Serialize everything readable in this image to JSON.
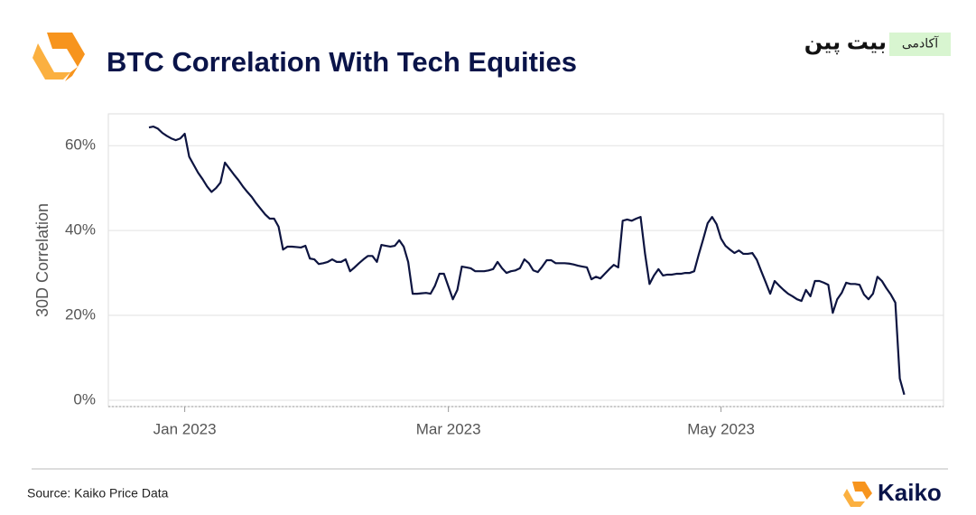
{
  "chart_data": {
    "type": "line",
    "title": "BTC Correlation With Tech Equities",
    "ylabel": "30D Correlation",
    "source": "Source: Kaiko Price Data",
    "logo": "Kaiko",
    "watermark": {
      "badge": "آکادمی",
      "name": "بیت پین"
    },
    "color": "#0d1440",
    "grid": true,
    "ylim": [
      -1.5,
      67.5
    ],
    "yticks": [
      {
        "value": 0,
        "label": "0%"
      },
      {
        "value": 20,
        "label": "20%"
      },
      {
        "value": 40,
        "label": "40%"
      },
      {
        "value": 60,
        "label": "60%"
      }
    ],
    "categories": [
      null,
      null,
      null,
      null,
      null,
      null,
      null,
      null,
      "Jan 2023",
      null,
      null,
      null,
      null,
      null,
      null,
      null,
      null,
      null,
      null,
      null,
      null,
      null,
      null,
      null,
      null,
      null,
      null,
      null,
      null,
      null,
      null,
      null,
      null,
      null,
      null,
      null,
      null,
      null,
      null,
      null,
      null,
      null,
      null,
      null,
      null,
      null,
      null,
      null,
      null,
      null,
      null,
      null,
      null,
      null,
      null,
      null,
      null,
      null,
      null,
      null,
      null,
      null,
      null,
      null,
      null,
      null,
      null,
      "Mar 2023",
      null,
      null,
      null,
      null,
      null,
      null,
      null,
      null,
      null,
      null,
      null,
      null,
      null,
      null,
      null,
      null,
      null,
      null,
      null,
      null,
      null,
      null,
      null,
      null,
      null,
      null,
      null,
      null,
      null,
      null,
      null,
      null,
      null,
      null,
      null,
      null,
      null,
      null,
      null,
      null,
      null,
      null,
      null,
      null,
      null,
      null,
      null,
      null,
      null,
      null,
      null,
      null,
      null,
      null,
      null,
      null,
      null,
      null,
      null,
      null,
      "May 2023",
      null,
      null,
      null,
      null,
      null,
      null,
      null,
      null,
      null,
      null,
      null,
      null,
      null,
      null,
      null,
      null,
      null,
      null,
      null,
      null,
      null,
      null,
      null,
      null,
      null,
      null,
      null,
      null,
      null,
      null,
      null,
      null,
      null,
      null,
      null,
      null,
      null,
      null,
      null,
      null,
      null
    ],
    "values": [
      64.3,
      64.5,
      64.0,
      63.0,
      62.3,
      61.7,
      61.3,
      61.7,
      62.8,
      57.4,
      55.5,
      53.6,
      52.1,
      50.4,
      49.1,
      50.0,
      51.3,
      56.0,
      54.6,
      53.2,
      51.9,
      50.4,
      49.1,
      47.9,
      46.4,
      45.1,
      43.8,
      42.8,
      42.8,
      40.9,
      35.5,
      36.2,
      36.2,
      36.1,
      36.0,
      36.4,
      33.4,
      33.2,
      32.1,
      32.3,
      32.6,
      33.2,
      32.6,
      32.6,
      33.2,
      30.4,
      31.3,
      32.3,
      33.2,
      34.0,
      34.0,
      32.6,
      36.6,
      36.4,
      36.2,
      36.4,
      37.7,
      36.2,
      32.6,
      25.1,
      25.1,
      25.2,
      25.3,
      25.1,
      27.0,
      29.8,
      29.8,
      26.8,
      23.8,
      26.0,
      31.5,
      31.3,
      31.1,
      30.4,
      30.4,
      30.4,
      30.6,
      30.9,
      32.6,
      31.1,
      30.0,
      30.4,
      30.6,
      31.1,
      33.2,
      32.3,
      30.6,
      30.2,
      31.5,
      33.0,
      33.0,
      32.3,
      32.3,
      32.3,
      32.2,
      32.0,
      31.7,
      31.5,
      31.3,
      28.5,
      29.1,
      28.7,
      29.8,
      30.9,
      31.9,
      31.3,
      42.3,
      42.6,
      42.3,
      42.8,
      43.2,
      34.5,
      27.4,
      29.4,
      30.9,
      29.4,
      29.6,
      29.6,
      29.8,
      29.8,
      30.0,
      30.0,
      30.4,
      34.3,
      37.9,
      41.7,
      43.2,
      41.5,
      38.1,
      36.4,
      35.5,
      34.7,
      35.3,
      34.5,
      34.5,
      34.7,
      33.1,
      30.4,
      27.8,
      25.1,
      28.1,
      27.0,
      26.0,
      25.1,
      24.5,
      23.8,
      23.4,
      26.0,
      24.5,
      28.1,
      28.1,
      27.7,
      27.2,
      20.6,
      23.8,
      25.3,
      27.7,
      27.4,
      27.4,
      27.2,
      24.9,
      23.8,
      25.1,
      29.1,
      28.1,
      26.4,
      24.9,
      23.0,
      5.1,
      1.3
    ]
  }
}
